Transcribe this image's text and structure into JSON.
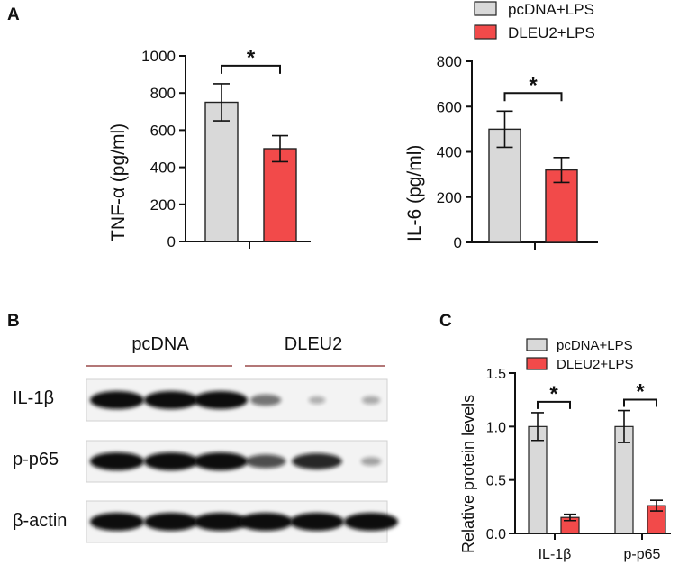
{
  "panels": {
    "A": "A",
    "B": "B",
    "C": "C"
  },
  "colors": {
    "pcdna": "#d9d9d9",
    "dleu2": "#f24a4a",
    "edge": "#222222"
  },
  "legend": {
    "pcdna": "pcDNA+LPS",
    "dleu2": "DLEU2+LPS"
  },
  "significance_mark": "*",
  "chart_data": [
    {
      "type": "bar",
      "ylabel": "TNF-α (pg/ml)",
      "ylim": [
        0,
        1000
      ],
      "yticks": [
        0,
        200,
        400,
        600,
        800,
        1000
      ],
      "series": [
        {
          "name": "pcDNA+LPS",
          "values": [
            750
          ],
          "errors": [
            100
          ]
        },
        {
          "name": "DLEU2+LPS",
          "values": [
            500
          ],
          "errors": [
            70
          ]
        }
      ]
    },
    {
      "type": "bar",
      "ylabel": "IL-6 (pg/ml)",
      "ylim": [
        0,
        800
      ],
      "yticks": [
        0,
        200,
        400,
        600,
        800
      ],
      "series": [
        {
          "name": "pcDNA+LPS",
          "values": [
            500
          ],
          "errors": [
            80
          ]
        },
        {
          "name": "DLEU2+LPS",
          "values": [
            320
          ],
          "errors": [
            55
          ]
        }
      ]
    },
    {
      "type": "bar",
      "categories": [
        "IL-1β",
        "p-p65"
      ],
      "ylabel": "Relative protein levels",
      "ylim": [
        0,
        1.5
      ],
      "yticks": [
        "0.0",
        "0.5",
        "1.0",
        "1.5"
      ],
      "series": [
        {
          "name": "pcDNA+LPS",
          "values": [
            1.0,
            1.0
          ],
          "errors": [
            0.13,
            0.15
          ]
        },
        {
          "name": "DLEU2+LPS",
          "values": [
            0.15,
            0.26
          ],
          "errors": [
            0.03,
            0.05
          ]
        }
      ]
    }
  ],
  "blot": {
    "groups": [
      "pcDNA",
      "DLEU2"
    ],
    "rows": [
      {
        "label": "IL-1β",
        "intensities": [
          1.0,
          1.0,
          1.0,
          0.35,
          0.05,
          0.08
        ]
      },
      {
        "label": "p-p65",
        "intensities": [
          1.0,
          1.0,
          1.0,
          0.55,
          0.75,
          0.12
        ]
      },
      {
        "label": "β-actin",
        "intensities": [
          1.0,
          1.0,
          1.0,
          1.0,
          1.0,
          1.0
        ]
      }
    ]
  }
}
